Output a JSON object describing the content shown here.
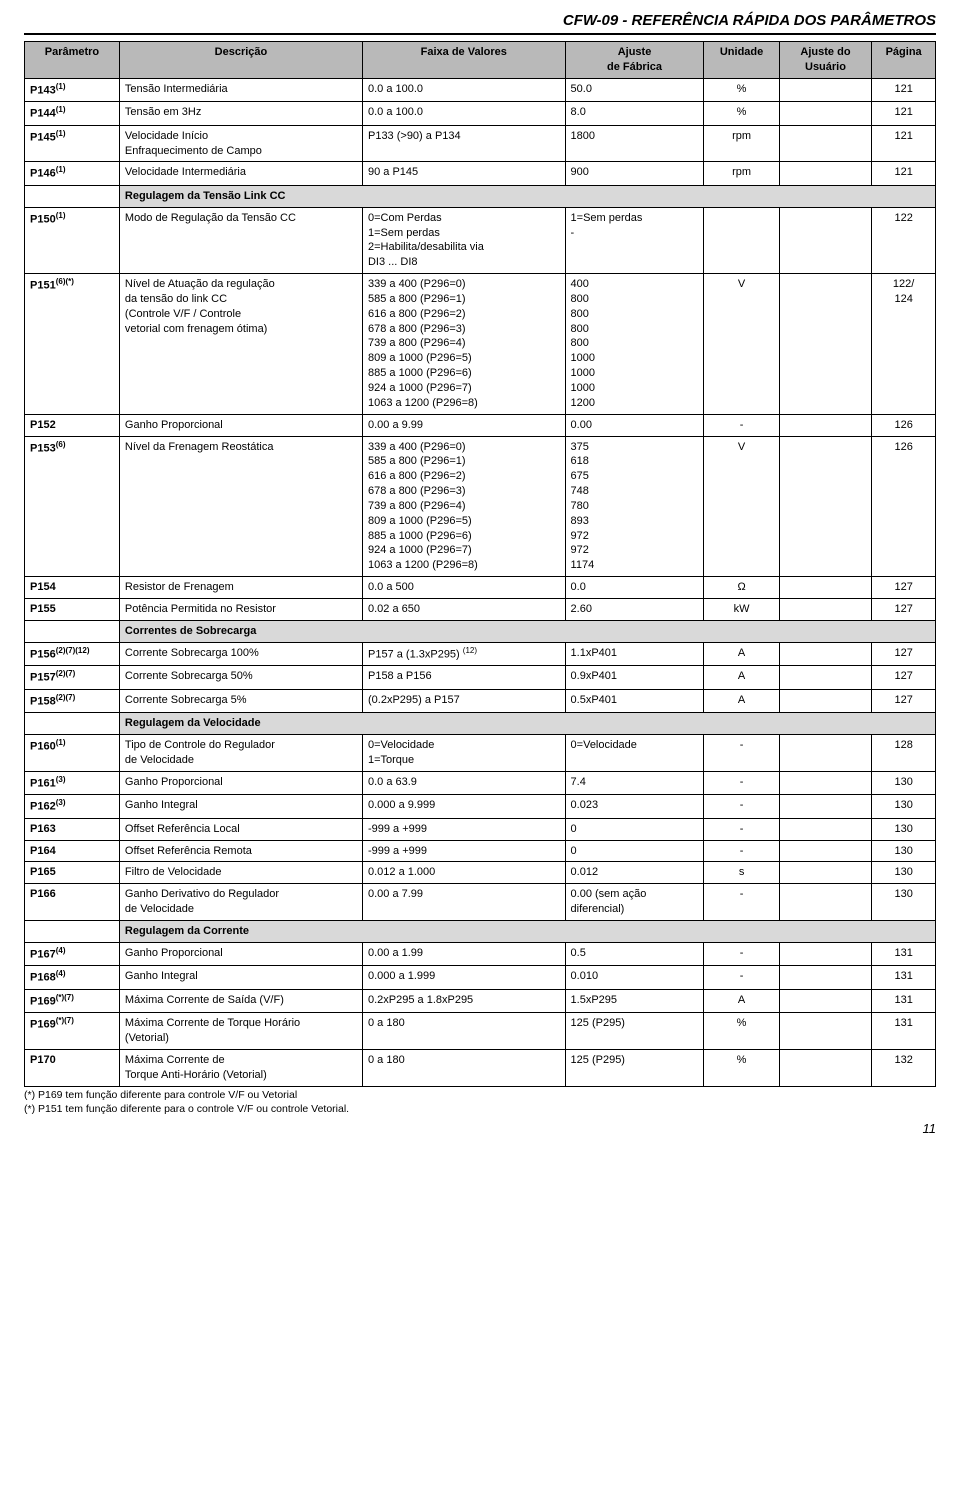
{
  "doc_title": "CFW-09 - REFERÊNCIA RÁPIDA DOS PARÂMETROS",
  "page_number": "11",
  "columns": {
    "param": "Parâmetro",
    "desc": "Descrição",
    "range": "Faixa de Valores",
    "fab": "Ajuste\nde Fábrica",
    "unit": "Unidade",
    "usr": "Ajuste do\nUsuário",
    "page": "Página"
  },
  "rows": [
    {
      "type": "row",
      "param": "P143",
      "sup": "(1)",
      "desc": "Tensão Intermediária",
      "range": "0.0 a 100.0",
      "fab": "50.0",
      "unit": "%",
      "usr": "",
      "page": "121"
    },
    {
      "type": "row",
      "param": "P144",
      "sup": "(1)",
      "desc": "Tensão em 3Hz",
      "range": "0.0 a 100.0",
      "fab": "8.0",
      "unit": "%",
      "usr": "",
      "page": "121"
    },
    {
      "type": "row",
      "param": "P145",
      "sup": "(1)",
      "desc": "Velocidade Início\nEnfraquecimento de Campo",
      "range": "P133 (>90) a P134",
      "fab": "1800",
      "unit": "rpm",
      "usr": "",
      "page": "121"
    },
    {
      "type": "row",
      "param": "P146",
      "sup": "(1)",
      "desc": "Velocidade Intermediária",
      "range": "90 a P145",
      "fab": "900",
      "unit": "rpm",
      "usr": "",
      "page": "121"
    },
    {
      "type": "section",
      "label": "Regulagem da Tensão Link CC"
    },
    {
      "type": "row",
      "param": "P150",
      "sup": "(1)",
      "desc": "Modo de Regulação da Tensão CC",
      "range": "0=Com Perdas\n1=Sem perdas\n2=Habilita/desabilita via\nDI3 ... DI8",
      "fab": "1=Sem perdas\n-",
      "unit": "",
      "usr": "",
      "page": "122"
    },
    {
      "type": "row",
      "param": "P151",
      "sup": "(6)(*)",
      "desc": "Nível de Atuação da regulação\nda tensão do link CC\n(Controle V/F / Controle\nvetorial com frenagem ótima)",
      "range": "339 a 400 (P296=0)\n585 a 800 (P296=1)\n616 a 800 (P296=2)\n678 a 800 (P296=3)\n739 a 800 (P296=4)\n809 a 1000 (P296=5)\n885 a 1000 (P296=6)\n924 a 1000 (P296=7)\n1063 a 1200 (P296=8)",
      "fab": "400\n800\n800\n800\n800\n1000\n1000\n1000\n1200",
      "unit": "V",
      "usr": "",
      "page": "122/\n124"
    },
    {
      "type": "row",
      "param": "P152",
      "sup": "",
      "desc": "Ganho Proporcional",
      "range": "0.00 a 9.99",
      "fab": "0.00",
      "unit": "-",
      "usr": "",
      "page": "126"
    },
    {
      "type": "row",
      "param": "P153",
      "sup": "(6)",
      "desc": "Nível da Frenagem Reostática",
      "range": "339 a 400 (P296=0)\n585 a 800 (P296=1)\n616 a 800 (P296=2)\n678 a 800 (P296=3)\n739 a 800 (P296=4)\n809 a 1000 (P296=5)\n885 a 1000 (P296=6)\n924 a 1000 (P296=7)\n1063 a 1200 (P296=8)",
      "fab": "375\n618\n675\n748\n780\n893\n972\n972\n1174",
      "unit": "V",
      "usr": "",
      "page": "126"
    },
    {
      "type": "row",
      "param": "P154",
      "sup": "",
      "desc": "Resistor de Frenagem",
      "range": "0.0  a  500",
      "fab": "0.0",
      "unit": "Ω",
      "usr": "",
      "page": "127"
    },
    {
      "type": "row",
      "param": "P155",
      "sup": "",
      "desc": "Potência Permitida no Resistor",
      "range": "0.02  a  650",
      "fab": "2.60",
      "unit": "kW",
      "usr": "",
      "page": "127"
    },
    {
      "type": "section",
      "label": "Correntes de Sobrecarga"
    },
    {
      "type": "row",
      "param": "P156",
      "sup": "(2)(7)(12)",
      "desc": "Corrente Sobrecarga 100%",
      "range": "P157 a  (1.3xP295)",
      "rsup": "(12)",
      "fab": "1.1xP401",
      "unit": "A",
      "usr": "",
      "page": "127"
    },
    {
      "type": "row",
      "param": "P157",
      "sup": "(2)(7)",
      "desc": "Corrente Sobrecarga 50%",
      "range": "P158 a P156",
      "fab": "0.9xP401",
      "unit": "A",
      "usr": "",
      "page": "127"
    },
    {
      "type": "row",
      "param": "P158",
      "sup": "(2)(7)",
      "desc": "Corrente Sobrecarga 5%",
      "range": "(0.2xP295) a P157",
      "fab": "0.5xP401",
      "unit": "A",
      "usr": "",
      "page": "127"
    },
    {
      "type": "section",
      "label": "Regulagem da Velocidade"
    },
    {
      "type": "row",
      "param": "P160",
      "sup": "(1)",
      "desc": "Tipo de Controle do Regulador\nde Velocidade",
      "range": "0=Velocidade\n1=Torque",
      "fab": "0=Velocidade",
      "unit": "-",
      "usr": "",
      "page": "128"
    },
    {
      "type": "row",
      "param": "P161",
      "sup": "(3)",
      "desc": "Ganho Proporcional",
      "range": "0.0 a 63.9",
      "fab": "7.4",
      "unit": "-",
      "usr": "",
      "page": "130"
    },
    {
      "type": "row",
      "param": "P162",
      "sup": "(3)",
      "desc": "Ganho Integral",
      "range": "0.000 a 9.999",
      "fab": "0.023",
      "unit": "-",
      "usr": "",
      "page": "130"
    },
    {
      "type": "row",
      "param": "P163",
      "sup": "",
      "desc": "Offset Referência Local",
      "range": "-999  a  +999",
      "fab": "0",
      "unit": "-",
      "usr": "",
      "page": "130"
    },
    {
      "type": "row",
      "param": "P164",
      "sup": "",
      "desc": "Offset Referência Remota",
      "range": "-999  a  +999",
      "fab": "0",
      "unit": "-",
      "usr": "",
      "page": "130"
    },
    {
      "type": "row",
      "param": "P165",
      "sup": "",
      "desc": "Filtro de Velocidade",
      "range": "0.012 a 1.000",
      "fab": "0.012",
      "unit": "s",
      "usr": "",
      "page": "130"
    },
    {
      "type": "row",
      "param": "P166",
      "sup": "",
      "desc": "Ganho Derivativo do Regulador\nde Velocidade",
      "range": "0.00 a 7.99",
      "fab": "0.00 (sem ação\ndiferencial)",
      "unit": "-",
      "usr": "",
      "page": "130"
    },
    {
      "type": "section",
      "label": "Regulagem da Corrente"
    },
    {
      "type": "row",
      "param": "P167",
      "sup": "(4)",
      "desc": "Ganho Proporcional",
      "range": "0.00 a 1.99",
      "fab": "0.5",
      "unit": "-",
      "usr": "",
      "page": "131"
    },
    {
      "type": "row",
      "param": "P168",
      "sup": "(4)",
      "desc": "Ganho Integral",
      "range": "0.000 a 1.999",
      "fab": "0.010",
      "unit": "-",
      "usr": "",
      "page": "131"
    },
    {
      "type": "row",
      "param": "P169",
      "sup": "(*)(7)",
      "desc": "Máxima Corrente de Saída (V/F)",
      "range": "0.2xP295 a 1.8xP295",
      "fab": "1.5xP295",
      "unit": "A",
      "usr": "",
      "page": "131"
    },
    {
      "type": "row",
      "param": "P169",
      "sup": "(*)(7)",
      "desc": "Máxima Corrente de Torque Horário\n(Vetorial)",
      "range": "0 a 180",
      "fab": "125 (P295)",
      "unit": "%",
      "usr": "",
      "page": "131"
    },
    {
      "type": "row",
      "param": "P170",
      "sup": "",
      "desc": "Máxima Corrente de\nTorque Anti-Horário (Vetorial)",
      "range": "0 a 180",
      "fab": "125 (P295)",
      "unit": "%",
      "usr": "",
      "page": "132"
    }
  ],
  "footnotes": [
    "(*) P169 tem função diferente para controle V/F ou Vetorial",
    "(*) P151 tem função diferente para o controle V/F ou controle Vetorial."
  ]
}
